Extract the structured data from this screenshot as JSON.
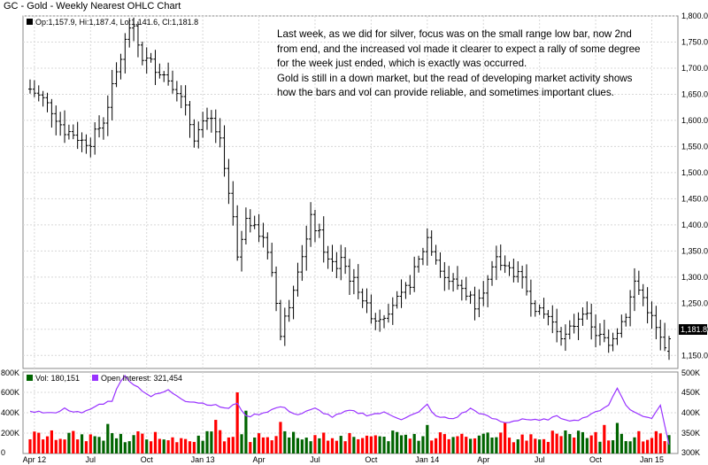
{
  "title": "GC - Gold - Weekly Nearest OHLC Chart",
  "price_panel": {
    "legend": {
      "box_color": "#000000",
      "text": "Op:1,157.9, Hi:1,187.4, Lo:1,141.6, Cl:1,181.8"
    },
    "last_price_label": "1,181.8",
    "y_ticks": [
      "1,150.0",
      "1,200.0",
      "1,250.0",
      "1,300.0",
      "1,350.0",
      "1,400.0",
      "1,450.0",
      "1,500.0",
      "1,550.0",
      "1,600.0",
      "1,650.0",
      "1,700.0",
      "1,750.0",
      "1,800.0"
    ]
  },
  "annotation": {
    "paragraph1": "Last week, as we did for silver, focus was on the small range low bar, now 2nd from end, and the increased vol made it clearer to expect a rally of some degree for the week just ended, which is exactly was occurred.",
    "paragraph2": "Gold is still in a down market, but the read of developing market activity shows how the bars and vol can provide reliable, and sometimes important clues."
  },
  "volume_panel": {
    "legend": {
      "vol_color": "#006400",
      "vol_text": "Vol: 180,151",
      "oi_color": "#9933ff",
      "oi_text": "Open Interest: 321,454"
    },
    "left_ticks": [
      "0",
      "200K",
      "400K",
      "600K",
      "800K"
    ],
    "right_ticks": [
      "300K",
      "350K",
      "400K",
      "450K",
      "500K"
    ]
  },
  "x_labels": [
    "Apr 12",
    "Jul",
    "Oct",
    "Jan 13",
    "Apr",
    "Jul",
    "Oct",
    "Jan 14",
    "Apr",
    "Jul",
    "Oct",
    "Jan 15"
  ],
  "chart_data": {
    "type": "ohlc",
    "frequency": "weekly",
    "price_ylim": [
      1125,
      1800
    ],
    "volume_ylim": [
      0,
      800000
    ],
    "oi_ylim": [
      300000,
      500000
    ],
    "series_colors": {
      "price": "#000000",
      "volume_up": "#006400",
      "volume_down": "#ff0000",
      "open_interest": "#9933ff"
    },
    "waypoints": [
      [
        0,
        1660
      ],
      [
        3,
        1640
      ],
      [
        5,
        1620
      ],
      [
        8,
        1580
      ],
      [
        10,
        1575
      ],
      [
        12,
        1560
      ],
      [
        14,
        1560
      ],
      [
        17,
        1600
      ],
      [
        19,
        1660
      ],
      [
        21,
        1720
      ],
      [
        23,
        1780
      ],
      [
        24,
        1770
      ],
      [
        26,
        1720
      ],
      [
        28,
        1710
      ],
      [
        30,
        1695
      ],
      [
        32,
        1680
      ],
      [
        34,
        1660
      ],
      [
        36,
        1620
      ],
      [
        38,
        1570
      ],
      [
        40,
        1590
      ],
      [
        42,
        1600
      ],
      [
        44,
        1560
      ],
      [
        46,
        1450
      ],
      [
        47,
        1410
      ],
      [
        48,
        1330
      ],
      [
        50,
        1420
      ],
      [
        52,
        1390
      ],
      [
        54,
        1380
      ],
      [
        56,
        1300
      ],
      [
        57,
        1250
      ],
      [
        58,
        1190
      ],
      [
        60,
        1250
      ],
      [
        62,
        1320
      ],
      [
        64,
        1370
      ],
      [
        65,
        1410
      ],
      [
        67,
        1380
      ],
      [
        69,
        1330
      ],
      [
        71,
        1320
      ],
      [
        72,
        1340
      ],
      [
        74,
        1300
      ],
      [
        76,
        1280
      ],
      [
        78,
        1240
      ],
      [
        80,
        1220
      ],
      [
        82,
        1230
      ],
      [
        84,
        1250
      ],
      [
        86,
        1260
      ],
      [
        88,
        1290
      ],
      [
        90,
        1330
      ],
      [
        92,
        1375
      ],
      [
        94,
        1340
      ],
      [
        96,
        1300
      ],
      [
        98,
        1290
      ],
      [
        100,
        1280
      ],
      [
        102,
        1260
      ],
      [
        103,
        1250
      ],
      [
        104,
        1270
      ],
      [
        106,
        1290
      ],
      [
        108,
        1330
      ],
      [
        110,
        1320
      ],
      [
        112,
        1310
      ],
      [
        114,
        1290
      ],
      [
        116,
        1260
      ],
      [
        118,
        1230
      ],
      [
        120,
        1225
      ],
      [
        122,
        1200
      ],
      [
        124,
        1185
      ],
      [
        126,
        1210
      ],
      [
        128,
        1240
      ],
      [
        130,
        1200
      ],
      [
        132,
        1185
      ],
      [
        134,
        1170
      ],
      [
        136,
        1200
      ],
      [
        138,
        1230
      ],
      [
        140,
        1290
      ],
      [
        142,
        1260
      ],
      [
        144,
        1220
      ],
      [
        146,
        1180
      ],
      [
        147,
        1160
      ],
      [
        148,
        1181.8
      ]
    ],
    "volume_spikes": [
      [
        18,
        290000
      ],
      [
        43,
        330000
      ],
      [
        48,
        600000
      ],
      [
        50,
        420000
      ],
      [
        58,
        310000
      ],
      [
        92,
        280000
      ],
      [
        110,
        300000
      ],
      [
        133,
        280000
      ],
      [
        136,
        300000
      ]
    ],
    "oi_waypoints": [
      [
        0,
        405000
      ],
      [
        5,
        398000
      ],
      [
        8,
        410000
      ],
      [
        12,
        398000
      ],
      [
        16,
        420000
      ],
      [
        19,
        430000
      ],
      [
        20,
        460000
      ],
      [
        22,
        490000
      ],
      [
        24,
        470000
      ],
      [
        28,
        440000
      ],
      [
        32,
        455000
      ],
      [
        36,
        430000
      ],
      [
        42,
        420000
      ],
      [
        46,
        410000
      ],
      [
        48,
        425000
      ],
      [
        50,
        390000
      ],
      [
        54,
        400000
      ],
      [
        58,
        415000
      ],
      [
        62,
        395000
      ],
      [
        66,
        410000
      ],
      [
        70,
        390000
      ],
      [
        74,
        405000
      ],
      [
        78,
        395000
      ],
      [
        82,
        400000
      ],
      [
        86,
        385000
      ],
      [
        90,
        400000
      ],
      [
        92,
        420000
      ],
      [
        94,
        390000
      ],
      [
        98,
        385000
      ],
      [
        102,
        410000
      ],
      [
        106,
        390000
      ],
      [
        110,
        375000
      ],
      [
        114,
        385000
      ],
      [
        118,
        380000
      ],
      [
        122,
        390000
      ],
      [
        126,
        380000
      ],
      [
        130,
        395000
      ],
      [
        134,
        420000
      ],
      [
        136,
        460000
      ],
      [
        138,
        420000
      ],
      [
        140,
        400000
      ],
      [
        144,
        385000
      ],
      [
        146,
        420000
      ],
      [
        148,
        321454
      ]
    ]
  }
}
